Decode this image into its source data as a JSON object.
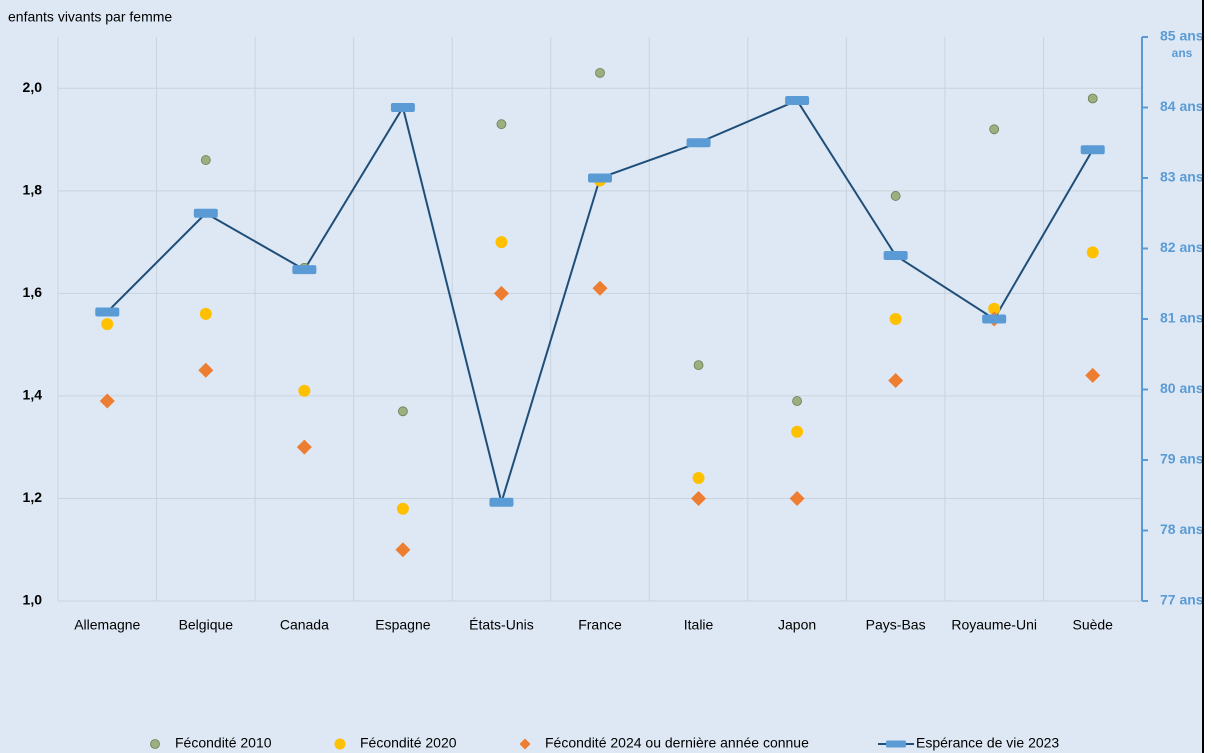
{
  "chart_data": {
    "type": "scatter-line",
    "ylabel": "enfants vivants par femme",
    "y2label": "ans",
    "categories": [
      "Allemagne",
      "Belgique",
      "Canada",
      "Espagne",
      "États-Unis",
      "France",
      "Italie",
      "Japon",
      "Pays-Bas",
      "Royaume-Uni",
      "Suède"
    ],
    "series": [
      {
        "name": "Fécondité 2010",
        "color": "#9bb07e",
        "marker": "circle",
        "values": [
          1.39,
          1.86,
          1.65,
          1.37,
          1.93,
          2.03,
          1.46,
          1.39,
          1.79,
          1.92,
          1.98
        ]
      },
      {
        "name": "Fécondité 2020",
        "color": "#ffc000",
        "marker": "circle",
        "values": [
          1.54,
          1.56,
          1.41,
          1.18,
          1.7,
          1.82,
          1.24,
          1.33,
          1.55,
          1.57,
          1.68
        ]
      },
      {
        "name": "Fécondité 2024 ou dernière année connue",
        "color": "#ed7d31",
        "marker": "diamond",
        "values": [
          1.39,
          1.45,
          1.3,
          1.1,
          1.6,
          1.61,
          1.2,
          1.2,
          1.43,
          1.55,
          1.44
        ]
      },
      {
        "name": "Espérance de vie 2023",
        "color": "#1f4e79",
        "marker_color": "#5b9bd5",
        "marker": "dash",
        "axis": "y2",
        "values": [
          81.1,
          82.5,
          81.7,
          84.0,
          78.4,
          83.0,
          83.5,
          84.1,
          81.9,
          81.0,
          83.4
        ]
      }
    ],
    "ylim": [
      1.0,
      2.1
    ],
    "yticks": [
      {
        "value": 1.0,
        "label": "1,0"
      },
      {
        "value": 1.2,
        "label": "1,2"
      },
      {
        "value": 1.4,
        "label": "1,4"
      },
      {
        "value": 1.6,
        "label": "1,6"
      },
      {
        "value": 1.8,
        "label": "1,8"
      },
      {
        "value": 2.0,
        "label": "2,0"
      }
    ],
    "y2lim": [
      77,
      85
    ],
    "y2ticks": [
      {
        "value": 77,
        "label": "77 ans"
      },
      {
        "value": 78,
        "label": "78 ans"
      },
      {
        "value": 79,
        "label": "79 ans"
      },
      {
        "value": 80,
        "label": "80 ans"
      },
      {
        "value": 81,
        "label": "81 ans"
      },
      {
        "value": 82,
        "label": "82 ans"
      },
      {
        "value": 83,
        "label": "83 ans"
      },
      {
        "value": 84,
        "label": "84 ans"
      },
      {
        "value": 85,
        "label": "85 ans"
      }
    ],
    "grid": true,
    "legend": "bottom"
  }
}
